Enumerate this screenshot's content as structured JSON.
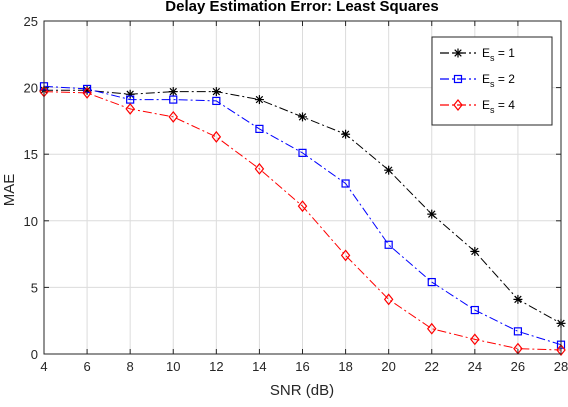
{
  "chart_data": {
    "type": "line",
    "title": "Delay Estimation Error: Least Squares",
    "xlabel": "SNR (dB)",
    "ylabel": "MAE",
    "xlim": [
      4,
      28
    ],
    "ylim": [
      0,
      25
    ],
    "xticks": [
      4,
      6,
      8,
      10,
      12,
      14,
      16,
      18,
      20,
      22,
      24,
      26,
      28
    ],
    "yticks": [
      0,
      5,
      10,
      15,
      20,
      25
    ],
    "grid": true,
    "legend_position": "top-right",
    "x": [
      4,
      6,
      8,
      10,
      12,
      14,
      16,
      18,
      20,
      22,
      24,
      26,
      28
    ],
    "series": [
      {
        "name": "E_s = 1",
        "name_main": "E",
        "name_sub": "s",
        "name_suffix": " = 1",
        "color": "#000000",
        "marker": "asterisk",
        "line_style": "dash-dot",
        "values": [
          19.8,
          19.8,
          19.5,
          19.7,
          19.7,
          19.1,
          17.8,
          16.5,
          13.8,
          10.5,
          7.7,
          4.1,
          2.3
        ]
      },
      {
        "name": "E_s = 2",
        "name_main": "E",
        "name_sub": "s",
        "name_suffix": " = 2",
        "color": "#0000ff",
        "marker": "square",
        "line_style": "dash-dot",
        "values": [
          20.1,
          19.9,
          19.1,
          19.1,
          19.0,
          16.9,
          15.1,
          12.8,
          8.2,
          5.4,
          3.3,
          1.7,
          0.7
        ]
      },
      {
        "name": "E_s = 4",
        "name_main": "E",
        "name_sub": "s",
        "name_suffix": " = 4",
        "color": "#ff0000",
        "marker": "diamond",
        "line_style": "dash-dot",
        "values": [
          19.7,
          19.6,
          18.4,
          17.8,
          16.3,
          13.9,
          11.1,
          7.4,
          4.1,
          1.9,
          1.1,
          0.4,
          0.3
        ]
      }
    ]
  }
}
